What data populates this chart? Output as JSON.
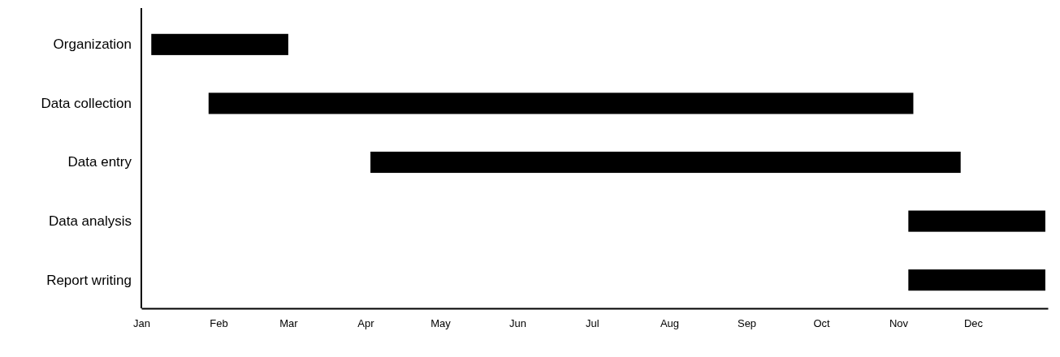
{
  "chart_data": {
    "type": "bar",
    "orientation": "horizontal",
    "categories": [
      "Organization",
      "Data collection",
      "Data entry",
      "Data analysis",
      "Report writing"
    ],
    "base": [
      11327,
      11350,
      11415,
      11631,
      11631
    ],
    "values": [
      55,
      283,
      237,
      55,
      55
    ],
    "color": "#000000",
    "xlim": [
      "--01-01",
      "--12-31"
    ],
    "xticks": [
      {
        "value": "--01-01",
        "label": "Jan"
      },
      {
        "value": "--02-01",
        "label": "Feb"
      },
      {
        "value": "--03-01",
        "label": "Mar"
      },
      {
        "value": "--04-01",
        "label": "Apr"
      },
      {
        "value": "--05-01",
        "label": "May"
      },
      {
        "value": "--06-01",
        "label": "Jun"
      },
      {
        "value": "--07-01",
        "label": "Jul"
      },
      {
        "value": "--08-01",
        "label": "Aug"
      },
      {
        "value": "--09-01",
        "label": "Sep"
      },
      {
        "value": "--10-01",
        "label": "Oct"
      },
      {
        "value": "--11-01",
        "label": "Nov"
      },
      {
        "value": "--12-01",
        "label": "Dec"
      }
    ]
  }
}
